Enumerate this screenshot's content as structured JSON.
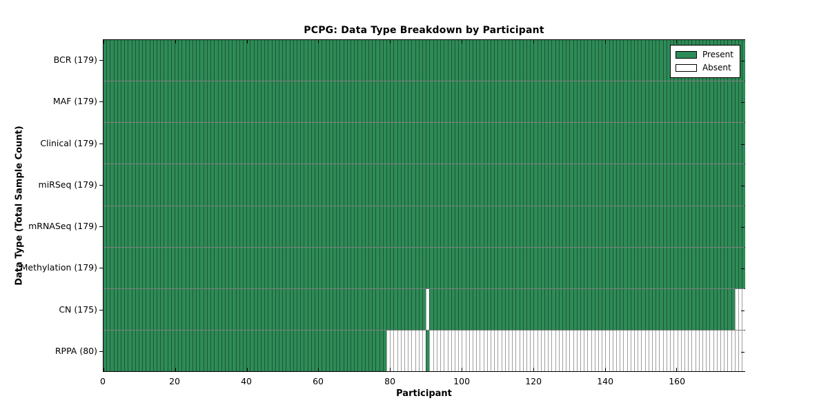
{
  "title": "PCPG: Data Type Breakdown by Participant",
  "xlabel": "Participant",
  "ylabel": "Data Type (Total Sample Count)",
  "colors": {
    "present": "#2e8b57",
    "absent": "#ffffff",
    "cell_edge": "rgba(0,0,0,0.38)",
    "row_divider": "rgba(0,0,0,0.5)",
    "spine": "#000000",
    "background": "#ffffff"
  },
  "legend": {
    "position": "upper right",
    "items": [
      {
        "label": "Present",
        "color": "#2e8b57"
      },
      {
        "label": "Absent",
        "color": "#ffffff"
      }
    ]
  },
  "chart_data": {
    "type": "heatmap",
    "title": "PCPG: Data Type Breakdown by Participant",
    "xlabel": "Participant",
    "ylabel": "Data Type (Total Sample Count)",
    "grid": false,
    "legend_position": "upper right",
    "legend_entries": [
      "Present",
      "Absent"
    ],
    "n_participants": 179,
    "x_range": [
      0,
      179
    ],
    "x_ticks": [
      0,
      20,
      40,
      60,
      80,
      100,
      120,
      140,
      160
    ],
    "rows": [
      {
        "data_type": "BCR",
        "label": "BCR (179)",
        "present_count": 179,
        "absent_ranges": []
      },
      {
        "data_type": "MAF",
        "label": "MAF (179)",
        "present_count": 179,
        "absent_ranges": []
      },
      {
        "data_type": "Clinical",
        "label": "Clinical (179)",
        "present_count": 179,
        "absent_ranges": []
      },
      {
        "data_type": "miRSeq",
        "label": "miRSeq (179)",
        "present_count": 179,
        "absent_ranges": []
      },
      {
        "data_type": "mRNASeq",
        "label": "mRNASeq (179)",
        "present_count": 179,
        "absent_ranges": []
      },
      {
        "data_type": "Methylation",
        "label": "Methylation (179)",
        "present_count": 179,
        "absent_ranges": []
      },
      {
        "data_type": "CN",
        "label": "CN (175)",
        "present_count": 175,
        "absent_ranges": [
          [
            90,
            90
          ],
          [
            176,
            178
          ]
        ]
      },
      {
        "data_type": "RPPA",
        "label": "RPPA (80)",
        "present_count": 80,
        "absent_ranges": [
          [
            79,
            89
          ],
          [
            91,
            178
          ]
        ]
      }
    ]
  }
}
